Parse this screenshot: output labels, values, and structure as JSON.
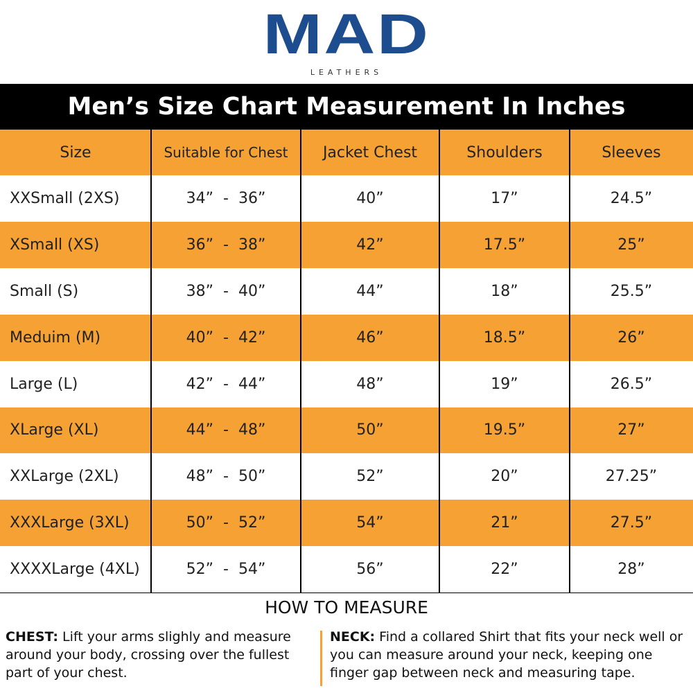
{
  "logo": {
    "title": "MAD",
    "subtitle": "LEATHERS"
  },
  "header": {
    "title": "Men’s Size Chart Measurement In Inches"
  },
  "table": {
    "columns": [
      "Size",
      "Suitable for Chest",
      "Jacket Chest",
      "Shoulders",
      "Sleeves"
    ],
    "rows": [
      [
        "XXSmall (2XS)",
        "34”  -  36”",
        "40”",
        "17”",
        "24.5”"
      ],
      [
        "XSmall (XS)",
        "36”  -  38”",
        "42”",
        "17.5”",
        "25”"
      ],
      [
        "Small (S)",
        "38”  -  40”",
        "44”",
        "18”",
        "25.5”"
      ],
      [
        "Meduim (M)",
        "40”  -  42”",
        "46”",
        "18.5”",
        "26”"
      ],
      [
        "Large (L)",
        "42”  -  44”",
        "48”",
        "19”",
        "26.5”"
      ],
      [
        "XLarge (XL)",
        "44”  -  48”",
        "50”",
        "19.5”",
        "27”"
      ],
      [
        "XXLarge (2XL)",
        "48”  -  50”",
        "52”",
        "20”",
        "27.25”"
      ],
      [
        "XXXLarge (3XL)",
        "50”  -  52”",
        "54”",
        "21”",
        "27.5”"
      ],
      [
        "XXXXLarge (4XL)",
        "52”  -  54”",
        "56”",
        "22”",
        "28”"
      ]
    ]
  },
  "measure": {
    "title": "HOW TO MEASURE",
    "notes": [
      {
        "label": "CHEST:",
        "text": "Lift your arms slighly and measure around your body, crossing over the fullest part of your chest."
      },
      {
        "label": "NECK:",
        "text": "Find a collared Shirt that fits your neck well or you can measure around your neck, keeping one finger gap between neck and measuring tape."
      }
    ]
  }
}
